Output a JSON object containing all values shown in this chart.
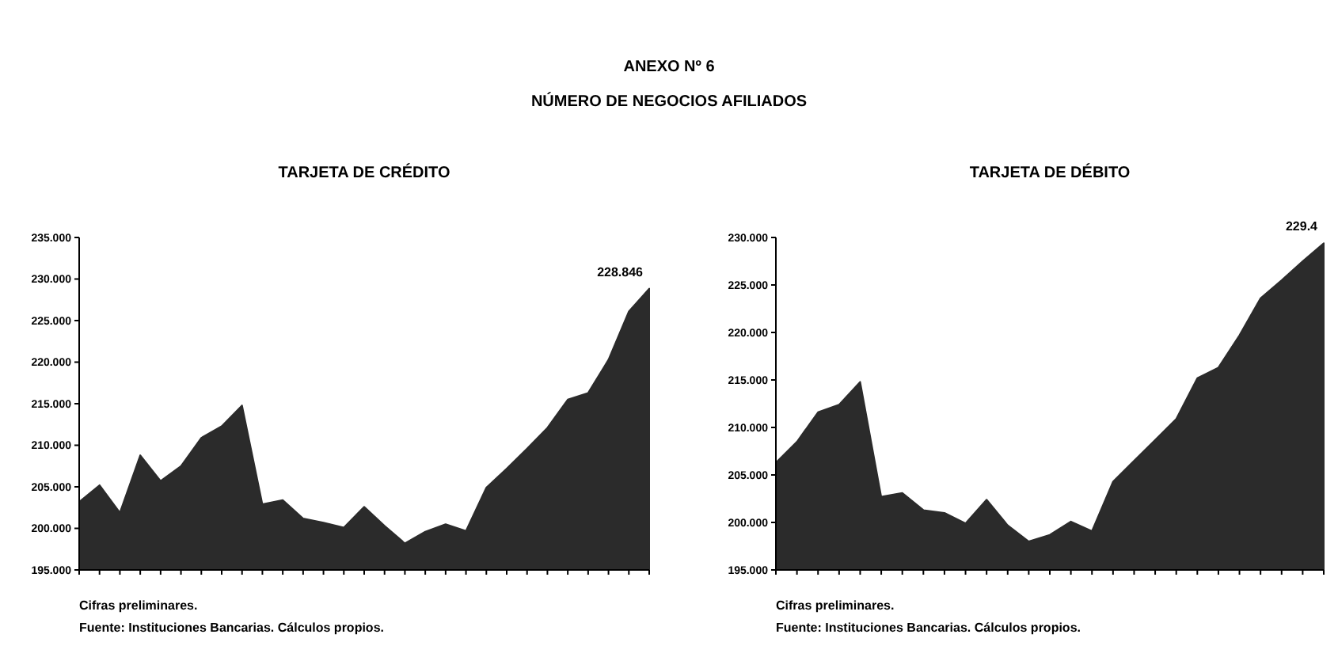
{
  "chart_data": [
    {
      "type": "area",
      "title": "TARJETA DE CRÉDITO",
      "categories": [
        null,
        null,
        null,
        null,
        null,
        null,
        null,
        null,
        null,
        null,
        null,
        null,
        null,
        null,
        null,
        null,
        null,
        null,
        null,
        null,
        null,
        null,
        null,
        null,
        null,
        null,
        null,
        null,
        null
      ],
      "series": [
        {
          "color": "#2b2b2b",
          "values": [
            203.2,
            205.2,
            201.9,
            208.8,
            205.7,
            207.5,
            210.9,
            212.3,
            214.8,
            202.9,
            203.4,
            201.2,
            200.7,
            200.1,
            202.6,
            200.3,
            198.2,
            199.6,
            200.5,
            199.7,
            204.9,
            207.2,
            209.6,
            212.1,
            215.5,
            216.3,
            220.3,
            226.1,
            228.846
          ]
        }
      ],
      "ylim": [
        195,
        235
      ],
      "yticks": [
        {
          "value": 195,
          "label": "195.000"
        },
        {
          "value": 200,
          "label": "200.000"
        },
        {
          "value": 205,
          "label": "205.000"
        },
        {
          "value": 210,
          "label": "210.000"
        },
        {
          "value": 215,
          "label": "215.000"
        },
        {
          "value": 220,
          "label": "220.000"
        },
        {
          "value": 225,
          "label": "225.000"
        },
        {
          "value": 230,
          "label": "230.000"
        },
        {
          "value": 235,
          "label": "235.000"
        }
      ],
      "annotations": [
        "ANEXO Nº 6",
        "NÚMERO DE NEGOCIOS AFILIADOS",
        "Cifras preliminares.",
        "Fuente: Instituciones Bancarias. Cálculos propios.",
        "228.846"
      ],
      "grid": false
    },
    {
      "type": "area",
      "title": "TARJETA DE DÉBITO",
      "categories": [
        null,
        null,
        null,
        null,
        null,
        null,
        null,
        null,
        null,
        null,
        null,
        null,
        null,
        null,
        null,
        null,
        null,
        null,
        null,
        null,
        null,
        null,
        null,
        null,
        null,
        null,
        null
      ],
      "series": [
        {
          "color": "#2b2b2b",
          "values": [
            206.3,
            208.5,
            211.6,
            212.4,
            214.8,
            202.7,
            203.1,
            201.3,
            201.0,
            199.9,
            202.4,
            199.7,
            198.0,
            198.7,
            200.1,
            199.1,
            204.3,
            206.5,
            208.7,
            210.9,
            215.2,
            216.3,
            219.7,
            223.6,
            225.5,
            227.5,
            229.4
          ]
        }
      ],
      "ylim": [
        195,
        230
      ],
      "yticks": [
        {
          "value": 195,
          "label": "195.000"
        },
        {
          "value": 200,
          "label": "200.000"
        },
        {
          "value": 205,
          "label": "205.000"
        },
        {
          "value": 210,
          "label": "210.000"
        },
        {
          "value": 215,
          "label": "215.000"
        },
        {
          "value": 220,
          "label": "220.000"
        },
        {
          "value": 225,
          "label": "225.000"
        },
        {
          "value": 230,
          "label": "230.000"
        }
      ],
      "annotations": [
        "Cifras preliminares.",
        "Fuente: Instituciones Bancarias. Cálculos propios.",
        "229.4"
      ],
      "grid": false
    }
  ]
}
